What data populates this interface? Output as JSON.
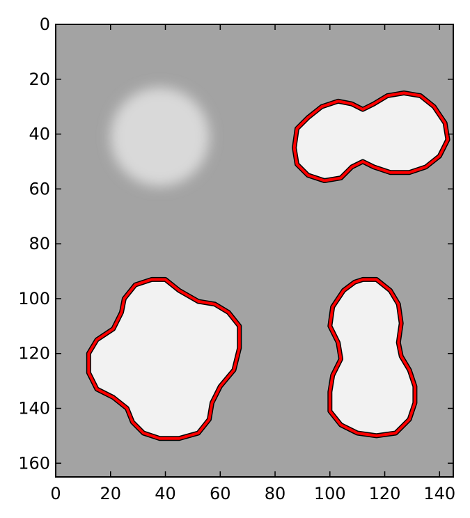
{
  "chart_data": {
    "type": "heatmap",
    "title": "",
    "xlabel": "",
    "ylabel": "",
    "xlim": [
      0,
      145
    ],
    "ylim": [
      165,
      0
    ],
    "y_inverted": true,
    "grid": false,
    "legend": "none",
    "xticks": [
      0,
      20,
      40,
      60,
      80,
      100,
      120,
      140
    ],
    "yticks": [
      0,
      20,
      40,
      60,
      80,
      100,
      120,
      140,
      160
    ],
    "colors": {
      "background": "#a3a3a3",
      "blob_fill": "#f2f2f2",
      "faint_blob": "#d9d9d9",
      "contour_red": "#ff0000",
      "contour_black": "#000000"
    },
    "faint_blob": {
      "cx": 38,
      "cy": 41,
      "r": 18
    },
    "blobs": [
      {
        "name": "top-right",
        "contour": [
          [
            88,
            38
          ],
          [
            92,
            34
          ],
          [
            97,
            30
          ],
          [
            103,
            28
          ],
          [
            108,
            29
          ],
          [
            112,
            31
          ],
          [
            116,
            29
          ],
          [
            121,
            26
          ],
          [
            127,
            25
          ],
          [
            133,
            26
          ],
          [
            138,
            30
          ],
          [
            142,
            36
          ],
          [
            143,
            42
          ],
          [
            140,
            48
          ],
          [
            135,
            52
          ],
          [
            129,
            54
          ],
          [
            122,
            54
          ],
          [
            116,
            52
          ],
          [
            112,
            50
          ],
          [
            108,
            52
          ],
          [
            104,
            56
          ],
          [
            98,
            57
          ],
          [
            92,
            55
          ],
          [
            88,
            51
          ],
          [
            87,
            45
          ]
        ]
      },
      {
        "name": "bottom-left",
        "contour": [
          [
            29,
            95
          ],
          [
            35,
            93
          ],
          [
            40,
            93
          ],
          [
            45,
            97
          ],
          [
            52,
            101
          ],
          [
            58,
            102
          ],
          [
            63,
            105
          ],
          [
            67,
            110
          ],
          [
            67,
            118
          ],
          [
            65,
            126
          ],
          [
            60,
            132
          ],
          [
            57,
            138
          ],
          [
            56,
            144
          ],
          [
            52,
            149
          ],
          [
            45,
            151
          ],
          [
            38,
            151
          ],
          [
            32,
            149
          ],
          [
            28,
            145
          ],
          [
            26,
            140
          ],
          [
            21,
            136
          ],
          [
            15,
            133
          ],
          [
            12,
            127
          ],
          [
            12,
            120
          ],
          [
            15,
            115
          ],
          [
            21,
            111
          ],
          [
            24,
            105
          ],
          [
            25,
            100
          ]
        ]
      },
      {
        "name": "bottom-right",
        "contour": [
          [
            112,
            93
          ],
          [
            117,
            93
          ],
          [
            122,
            97
          ],
          [
            125,
            102
          ],
          [
            126,
            109
          ],
          [
            125,
            116
          ],
          [
            126,
            121
          ],
          [
            129,
            126
          ],
          [
            131,
            132
          ],
          [
            131,
            138
          ],
          [
            129,
            144
          ],
          [
            124,
            149
          ],
          [
            117,
            150
          ],
          [
            110,
            149
          ],
          [
            104,
            146
          ],
          [
            100,
            141
          ],
          [
            100,
            134
          ],
          [
            101,
            128
          ],
          [
            104,
            122
          ],
          [
            103,
            116
          ],
          [
            100,
            110
          ],
          [
            101,
            103
          ],
          [
            105,
            97
          ],
          [
            109,
            94
          ]
        ]
      }
    ]
  }
}
